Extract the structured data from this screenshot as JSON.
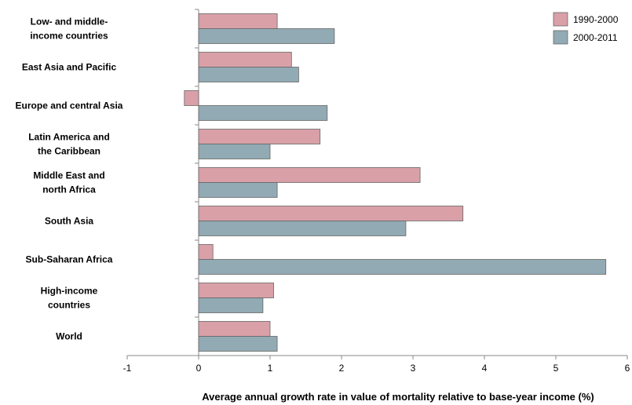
{
  "chart_data": {
    "type": "bar",
    "orientation": "horizontal",
    "categories": [
      [
        "Low- and middle-",
        "income countries"
      ],
      [
        "East Asia and Pacific"
      ],
      [
        "Europe and central Asia"
      ],
      [
        "Latin America and",
        "the Caribbean"
      ],
      [
        "Middle East and",
        "north Africa"
      ],
      [
        "South Asia"
      ],
      [
        "Sub-Saharan Africa"
      ],
      [
        "High-income",
        "countries"
      ],
      [
        "World"
      ]
    ],
    "series": [
      {
        "name": "1990-2000",
        "color": "#d9a0a8",
        "values": [
          1.1,
          1.3,
          -0.2,
          1.7,
          3.1,
          3.7,
          0.2,
          1.05,
          1.0
        ]
      },
      {
        "name": "2000-2011",
        "color": "#92aab4",
        "values": [
          1.9,
          1.4,
          1.8,
          1.0,
          1.1,
          2.9,
          5.7,
          0.9,
          1.1
        ]
      }
    ],
    "xlim": [
      -1,
      6
    ],
    "xticks": [
      "-1",
      "0",
      "1",
      "2",
      "3",
      "4",
      "5",
      "6"
    ],
    "xlabel": "Average annual growth rate in value of mortality relative to base-year income (%)",
    "ylabel": "",
    "title": "",
    "legend_position": "top-right",
    "grid": false
  }
}
